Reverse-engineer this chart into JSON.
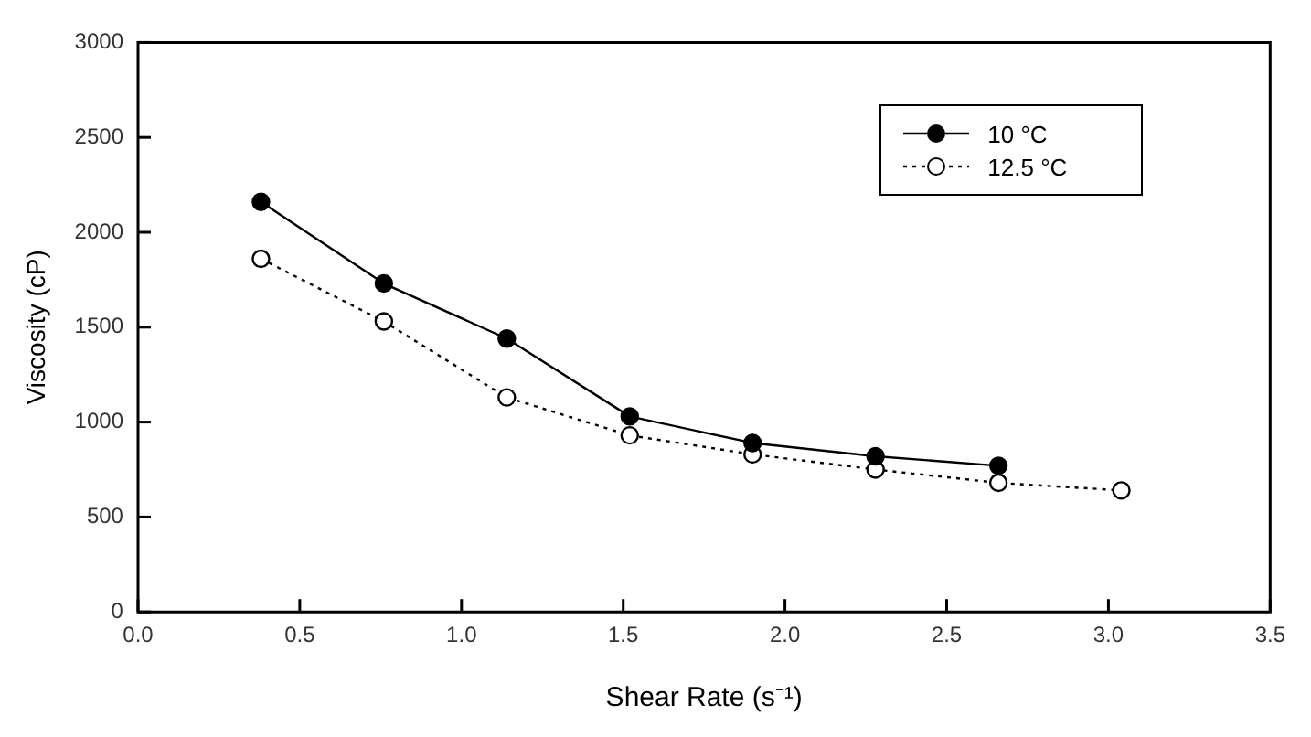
{
  "chart_data": {
    "type": "line",
    "xlabel": "Shear Rate (s⁻¹)",
    "ylabel": "Viscosity (cP)",
    "xlim": [
      0,
      3.5
    ],
    "xticks": [
      {
        "value": 0,
        "label": "0.0"
      },
      {
        "value": 0.5,
        "label": "0.5"
      },
      {
        "value": 1,
        "label": "1.0"
      },
      {
        "value": 1.5,
        "label": "1.5"
      },
      {
        "value": 2,
        "label": "2.0"
      },
      {
        "value": 2.5,
        "label": "2.5"
      },
      {
        "value": 3,
        "label": "3.0"
      },
      {
        "value": 3.5,
        "label": "3.5"
      }
    ],
    "ylim": [
      0,
      3000
    ],
    "yticks": [
      0,
      500,
      1000,
      1500,
      2000,
      2500,
      3000
    ],
    "grid": false,
    "legend": "top right",
    "marker": "circle",
    "series": [
      {
        "name": "10 °C",
        "color": "#000000",
        "line_style": "solid",
        "x": [
          0.38,
          0.76,
          1.14,
          1.52,
          1.9,
          2.28,
          2.66
        ],
        "values": [
          2160,
          1730,
          1440,
          1030,
          890,
          820,
          770
        ]
      },
      {
        "name": "12.5 °C",
        "color": "#000000",
        "line_style": "dotted",
        "x": [
          0.38,
          0.76,
          1.14,
          1.52,
          1.9,
          2.28,
          2.66,
          3.04
        ],
        "values": [
          1860,
          1530,
          1130,
          930,
          830,
          750,
          680,
          640
        ]
      }
    ]
  }
}
